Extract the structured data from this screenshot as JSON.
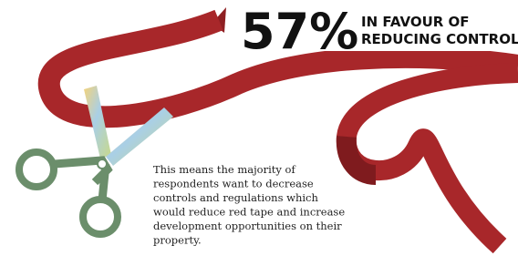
{
  "headline": {
    "figure": "57%",
    "caption_lines": [
      "IN FAVOUR OF",
      "REDUCING CONTROLS"
    ]
  },
  "body": {
    "lines": [
      "This means the majority of",
      "respondents want to decrease",
      "controls and regulations which",
      "would reduce red tape and increase",
      "development opportunities on their",
      "property."
    ]
  }
}
